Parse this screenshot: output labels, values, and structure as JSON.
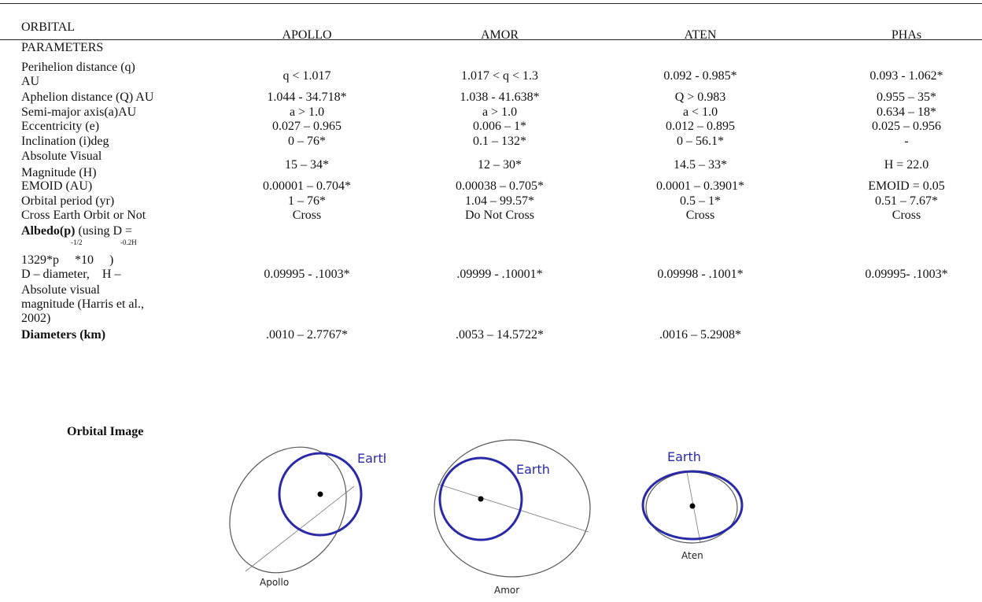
{
  "header": {
    "row_label_1": "ORBITAL",
    "row_label_2": "PARAMETERS",
    "columns": [
      "APOLLO",
      "AMOR",
      "ATEN",
      "PHAs"
    ]
  },
  "rows": [
    {
      "label": [
        "Perihelion distance (q)",
        "AU"
      ],
      "values": [
        "q < 1.017",
        "1.017 < q < 1.3",
        "0.092 - 0.985*",
        "0.093 - 1.062*"
      ]
    },
    {
      "label": [
        "Aphelion distance (Q) AU"
      ],
      "values": [
        "1.044 - 34.718*",
        "1.038 - 41.638*",
        "Q > 0.983",
        "0.955 – 35*"
      ]
    },
    {
      "label": [
        "Semi-major axis(a)AU"
      ],
      "values": [
        "a > 1.0",
        "a > 1.0",
        "a < 1.0",
        "0.634 – 18*"
      ]
    },
    {
      "label": [
        "Eccentricity (e)"
      ],
      "values": [
        "0.027 – 0.965",
        "0.006 – 1*",
        "0.012 – 0.895",
        "0.025 – 0.956"
      ]
    },
    {
      "label": [
        "Inclination (i)deg"
      ],
      "values": [
        "0 – 76*",
        "0.1 – 132*",
        "0 – 56.1*",
        "-"
      ]
    },
    {
      "label": [
        "Absolute Visual",
        "Magnitude (H)"
      ],
      "values": [
        "15 – 34*",
        "12 – 30*",
        "14.5 – 33*",
        "H =  22.0"
      ]
    },
    {
      "label": [
        "EMOID (AU)"
      ],
      "values": [
        "0.00001 – 0.704*",
        "0.00038 – 0.705*",
        "0.0001 – 0.3901*",
        "EMOID =  0.05"
      ]
    },
    {
      "label": [
        "Orbital period (yr)"
      ],
      "values": [
        "1 – 76*",
        "1.04 – 99.57*",
        "0.5 – 1*",
        "0.51 – 7.67*"
      ]
    },
    {
      "label": [
        "Cross Earth Orbit or Not"
      ],
      "values": [
        "Cross",
        "Do Not Cross",
        "Cross",
        "Cross"
      ]
    }
  ],
  "albedo": {
    "bold": "Albedo(p)",
    "rest": " (using D =",
    "formula": "1329*p     *10     )",
    "sup1": "-1/2",
    "sup2": "-0.2H",
    "line3": "D – diameter,    H –",
    "line4": "Absolute visual",
    "line5": "magnitude (Harris et al.,",
    "line6": "2002)",
    "values": [
      "0.09995 - .1003*",
      ".09999 - .10001*",
      "0.09998 - .1001*",
      "0.09995- .1003*"
    ]
  },
  "diameters": {
    "label": "Diameters (km)",
    "values": [
      ".0010 – 2.7767*",
      ".0053 – 14.5722*",
      ".0016 – 5.2908*",
      ""
    ]
  },
  "orbital_image": {
    "label": "Orbital Image",
    "earth_label": "Earth",
    "apollo_label": "Apollo",
    "amor_label": "Amor",
    "aten_label": "Aten",
    "earth_color": "#2a2aa8",
    "orbit_color": "#555555"
  }
}
